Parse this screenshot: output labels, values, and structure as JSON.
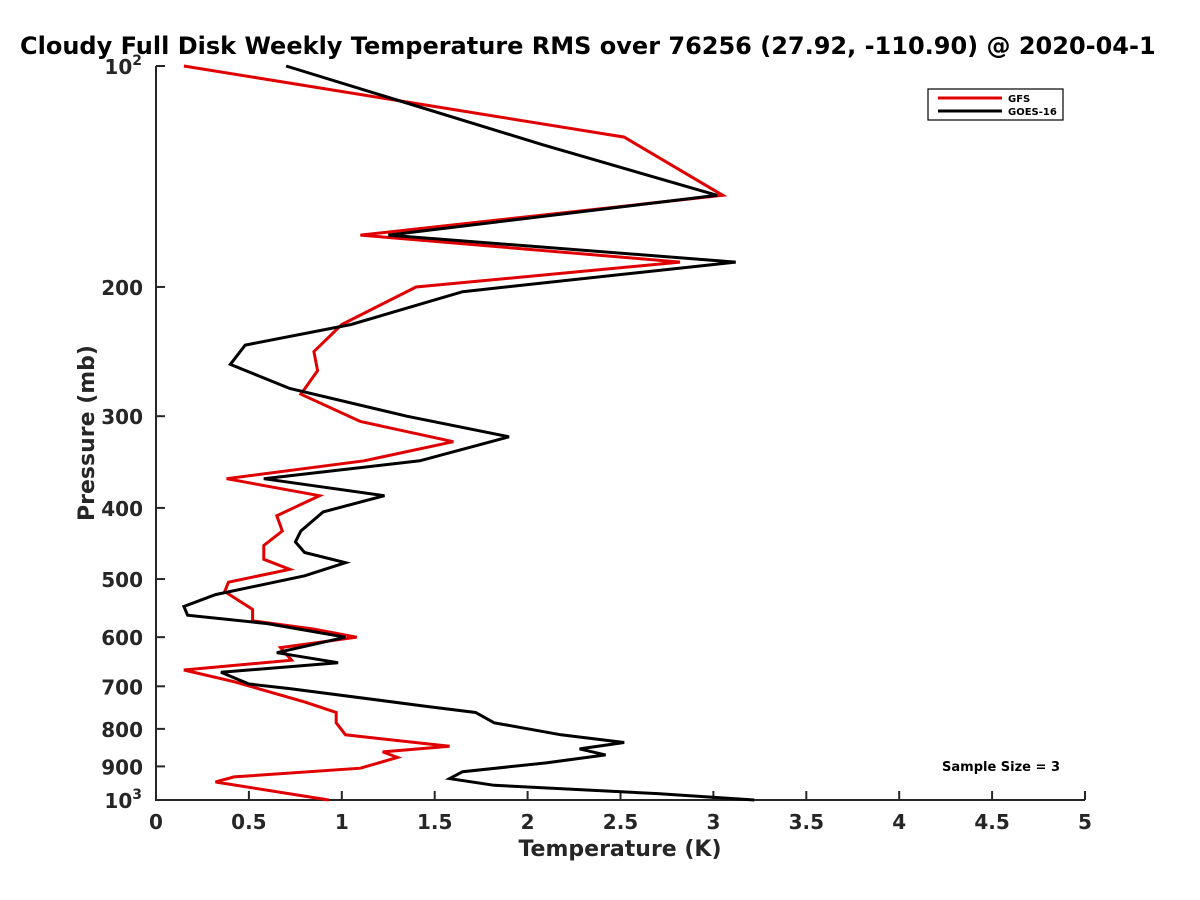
{
  "chart_data": {
    "type": "line",
    "title": "Cloudy Full Disk Weekly Temperature RMS over 76256 (27.92, -110.90) @ 2020-04-1",
    "xlabel": "Temperature (K)",
    "ylabel": "Pressure (mb)",
    "xlim": [
      0,
      5
    ],
    "ylim": [
      100,
      1000
    ],
    "y_scale": "log",
    "y_reversed": true,
    "grid": false,
    "legend_position": "top-right",
    "x_ticks": [
      "0",
      "0.5",
      "1",
      "1.5",
      "2",
      "2.5",
      "3",
      "3.5",
      "4",
      "4.5",
      "5"
    ],
    "y_ticks": [
      {
        "value": 100,
        "label": "10",
        "sup": "2"
      },
      {
        "value": 200,
        "label": "200",
        "sup": ""
      },
      {
        "value": 300,
        "label": "300",
        "sup": ""
      },
      {
        "value": 400,
        "label": "400",
        "sup": ""
      },
      {
        "value": 500,
        "label": "500",
        "sup": ""
      },
      {
        "value": 600,
        "label": "600",
        "sup": ""
      },
      {
        "value": 700,
        "label": "700",
        "sup": ""
      },
      {
        "value": 800,
        "label": "800",
        "sup": ""
      },
      {
        "value": 900,
        "label": "900",
        "sup": ""
      },
      {
        "value": 1000,
        "label": "10",
        "sup": "3"
      }
    ],
    "annotation": "Sample Size = 3",
    "series": [
      {
        "name": "GFS",
        "color": "#e00000",
        "points": [
          [
            0.15,
            100
          ],
          [
            2.52,
            125
          ],
          [
            3.05,
            150
          ],
          [
            1.1,
            170
          ],
          [
            2.82,
            185
          ],
          [
            1.4,
            200
          ],
          [
            1.0,
            225
          ],
          [
            0.85,
            245
          ],
          [
            0.87,
            260
          ],
          [
            0.78,
            280
          ],
          [
            1.1,
            305
          ],
          [
            1.6,
            325
          ],
          [
            1.12,
            345
          ],
          [
            0.38,
            365
          ],
          [
            0.88,
            385
          ],
          [
            0.65,
            410
          ],
          [
            0.68,
            430
          ],
          [
            0.58,
            450
          ],
          [
            0.58,
            470
          ],
          [
            0.72,
            485
          ],
          [
            0.39,
            505
          ],
          [
            0.37,
            520
          ],
          [
            0.52,
            550
          ],
          [
            0.52,
            570
          ],
          [
            0.85,
            585
          ],
          [
            1.08,
            600
          ],
          [
            0.67,
            620
          ],
          [
            0.73,
            645
          ],
          [
            0.15,
            665
          ],
          [
            0.42,
            690
          ],
          [
            0.8,
            735
          ],
          [
            0.97,
            760
          ],
          [
            0.97,
            785
          ],
          [
            1.02,
            815
          ],
          [
            1.58,
            845
          ],
          [
            1.22,
            860
          ],
          [
            1.3,
            875
          ],
          [
            1.1,
            905
          ],
          [
            0.42,
            930
          ],
          [
            0.32,
            945
          ],
          [
            0.93,
            1000
          ]
        ]
      },
      {
        "name": "GOES-16",
        "color": "#000000",
        "points": [
          [
            0.7,
            100
          ],
          [
            2.08,
            128
          ],
          [
            3.02,
            150
          ],
          [
            1.25,
            170
          ],
          [
            3.12,
            185
          ],
          [
            1.65,
            203
          ],
          [
            1.05,
            225
          ],
          [
            0.48,
            240
          ],
          [
            0.4,
            255
          ],
          [
            0.72,
            275
          ],
          [
            1.35,
            300
          ],
          [
            1.9,
            320
          ],
          [
            1.42,
            345
          ],
          [
            0.58,
            365
          ],
          [
            1.23,
            385
          ],
          [
            0.9,
            405
          ],
          [
            0.78,
            430
          ],
          [
            0.75,
            445
          ],
          [
            0.8,
            460
          ],
          [
            1.02,
            475
          ],
          [
            0.8,
            495
          ],
          [
            0.32,
            525
          ],
          [
            0.15,
            545
          ],
          [
            0.17,
            560
          ],
          [
            0.6,
            575
          ],
          [
            1.02,
            600
          ],
          [
            0.65,
            630
          ],
          [
            0.98,
            650
          ],
          [
            0.35,
            670
          ],
          [
            0.5,
            695
          ],
          [
            0.72,
            705
          ],
          [
            1.45,
            745
          ],
          [
            1.72,
            760
          ],
          [
            1.82,
            785
          ],
          [
            2.18,
            815
          ],
          [
            2.52,
            835
          ],
          [
            2.28,
            852
          ],
          [
            2.42,
            868
          ],
          [
            2.1,
            890
          ],
          [
            1.65,
            915
          ],
          [
            1.58,
            935
          ],
          [
            1.82,
            955
          ],
          [
            2.7,
            980
          ],
          [
            3.22,
            1000
          ]
        ]
      }
    ]
  }
}
